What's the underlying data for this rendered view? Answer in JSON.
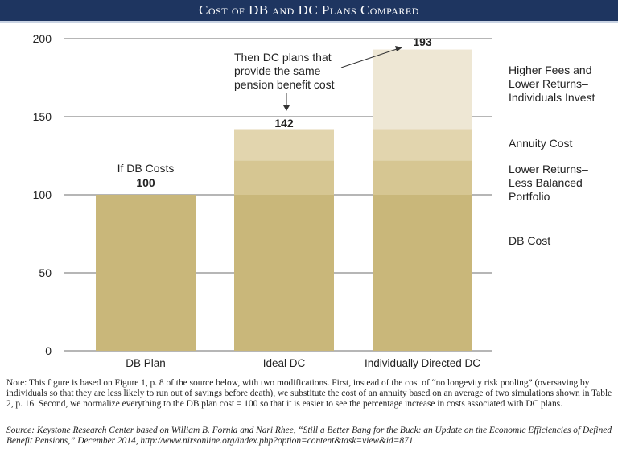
{
  "header": {
    "title": "Cost of DB and DC Plans Compared"
  },
  "chart_data": {
    "type": "bar",
    "stacked": true,
    "title": "Cost of DB and DC Plans Compared",
    "categories": [
      "DB Plan",
      "Ideal DC",
      "Individually Directed DC"
    ],
    "series": [
      {
        "name": "DB Cost",
        "values": [
          100,
          100,
          100
        ],
        "color": "#c9b77a"
      },
      {
        "name": "Lower Returns– Less Balanced Portfolio",
        "values": [
          0,
          22,
          22
        ],
        "color": "#d6c692"
      },
      {
        "name": "Annuity Cost",
        "values": [
          0,
          20,
          20
        ],
        "color": "#e2d5ae"
      },
      {
        "name": "Higher Fees and Lower Returns– Individuals Invest",
        "values": [
          0,
          0,
          51
        ],
        "color": "#eee7d4"
      }
    ],
    "totals": [
      100,
      142,
      193
    ],
    "ylim": [
      0,
      200
    ],
    "yticks": [
      0,
      50,
      100,
      150,
      200
    ],
    "grid": true,
    "legend_placement": "right",
    "legend_labels": [
      [
        "Higher Fees and",
        "Lower Returns–",
        "Individuals Invest"
      ],
      [
        "Annuity Cost"
      ],
      [
        "Lower Returns–",
        "Less Balanced",
        "Portfolio"
      ],
      [
        "DB Cost"
      ]
    ],
    "annotations": {
      "db": [
        "If DB Costs"
      ],
      "dc": [
        "Then DC plans that",
        "provide the same",
        "pension benefit cost"
      ]
    }
  },
  "note": "Note: This figure is based on Figure 1, p. 8 of the source below, with two modifications. First, instead of the cost of “no longevity risk pooling” (oversaving by individuals so that they are less likely to run out of savings before death), we substitute the cost of an annuity based on an average of two simulations shown in Table 2, p. 16. Second, we normalize everything to the DB plan cost = 100 so that it is easier to see the percentage increase in costs associated with DC plans.",
  "source": "Source: Keystone Research Center based on William B. Fornia and Nari Rhee, “Still a Better Bang for the Buck: an Update on the Economic Efficiencies of Defined Benefit Pensions,” December 2014, http://www.nirsonline.org/index.php?option=content&task=view&id=871."
}
